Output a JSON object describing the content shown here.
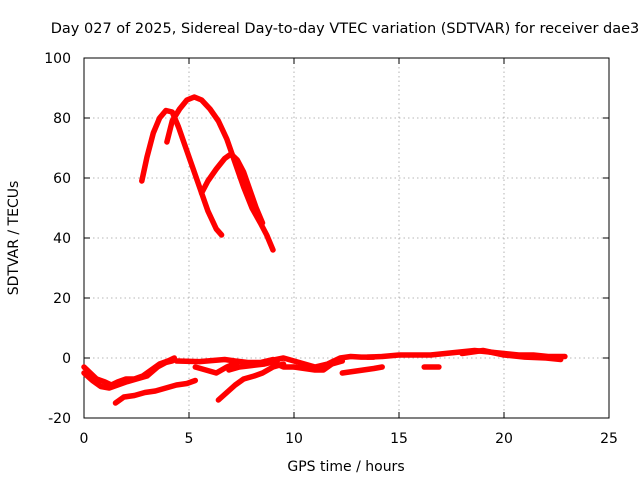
{
  "chart_data": {
    "type": "line",
    "title": "Day 027 of 2025, Sidereal Day-to-day VTEC variation (SDTVAR) for receiver dae3",
    "xlabel": "GPS time / hours",
    "ylabel": "SDTVAR / TECUs",
    "xlim": [
      0,
      25
    ],
    "ylim": [
      -20,
      100
    ],
    "xticks": [
      0,
      5,
      10,
      15,
      20,
      25
    ],
    "yticks": [
      -20,
      0,
      20,
      40,
      60,
      80,
      100
    ],
    "grid": true,
    "legend": "none",
    "color": "#ff0000",
    "series": [
      {
        "name": "arc-1",
        "points": [
          [
            2.75,
            59
          ],
          [
            3.0,
            67
          ],
          [
            3.3,
            75
          ],
          [
            3.6,
            80
          ],
          [
            3.9,
            82.5
          ],
          [
            4.2,
            82
          ],
          [
            4.5,
            77
          ],
          [
            4.8,
            71
          ],
          [
            5.1,
            65
          ],
          [
            5.5,
            57
          ],
          [
            5.9,
            49
          ],
          [
            6.3,
            43
          ],
          [
            6.55,
            41
          ]
        ]
      },
      {
        "name": "arc-2",
        "points": [
          [
            3.95,
            72
          ],
          [
            4.2,
            79
          ],
          [
            4.55,
            83
          ],
          [
            4.9,
            86
          ],
          [
            5.25,
            87
          ],
          [
            5.6,
            86
          ],
          [
            6.0,
            83
          ],
          [
            6.4,
            79
          ],
          [
            6.8,
            73
          ],
          [
            7.2,
            65
          ],
          [
            7.6,
            57
          ],
          [
            8.0,
            50
          ],
          [
            8.4,
            45
          ],
          [
            8.7,
            41
          ],
          [
            9.0,
            36
          ]
        ]
      },
      {
        "name": "arc-3",
        "points": [
          [
            5.6,
            55
          ],
          [
            5.9,
            59
          ],
          [
            6.3,
            63
          ],
          [
            6.7,
            66.5
          ],
          [
            7.0,
            68
          ],
          [
            7.3,
            66
          ],
          [
            7.6,
            62
          ],
          [
            7.9,
            56
          ],
          [
            8.2,
            50
          ],
          [
            8.5,
            45
          ]
        ]
      },
      {
        "name": "low-1",
        "points": [
          [
            0.0,
            -3
          ],
          [
            0.3,
            -5
          ],
          [
            0.6,
            -7
          ],
          [
            1.0,
            -8
          ],
          [
            1.3,
            -9
          ],
          [
            1.6,
            -8
          ],
          [
            2.0,
            -7
          ],
          [
            2.4,
            -7
          ],
          [
            2.8,
            -6
          ],
          [
            3.2,
            -4
          ],
          [
            3.6,
            -2
          ],
          [
            4.0,
            -1
          ],
          [
            4.3,
            0
          ]
        ]
      },
      {
        "name": "low-2",
        "points": [
          [
            0.0,
            -5
          ],
          [
            0.4,
            -7.5
          ],
          [
            0.8,
            -9.5
          ],
          [
            1.2,
            -10
          ],
          [
            1.6,
            -9
          ],
          [
            2.0,
            -8
          ],
          [
            2.5,
            -7
          ],
          [
            3.0,
            -6
          ],
          [
            3.5,
            -3
          ],
          [
            3.9,
            -1.5
          ],
          [
            4.2,
            -1
          ]
        ]
      },
      {
        "name": "low-3",
        "points": [
          [
            1.5,
            -15
          ],
          [
            1.9,
            -13
          ],
          [
            2.4,
            -12.5
          ],
          [
            2.9,
            -11.5
          ],
          [
            3.4,
            -11
          ],
          [
            3.9,
            -10
          ],
          [
            4.4,
            -9
          ],
          [
            4.9,
            -8.5
          ],
          [
            5.3,
            -7.5
          ]
        ]
      },
      {
        "name": "low-4",
        "points": [
          [
            5.3,
            -3
          ],
          [
            5.8,
            -4
          ],
          [
            6.3,
            -5
          ],
          [
            6.8,
            -3
          ],
          [
            7.3,
            -1.5
          ]
        ]
      },
      {
        "name": "low-5",
        "points": [
          [
            6.4,
            -14
          ],
          [
            6.8,
            -11.5
          ],
          [
            7.2,
            -9
          ],
          [
            7.6,
            -7
          ],
          [
            8.1,
            -6
          ],
          [
            8.5,
            -5
          ],
          [
            9.0,
            -3
          ],
          [
            9.5,
            -2
          ]
        ]
      },
      {
        "name": "low-6",
        "points": [
          [
            4.4,
            -1
          ],
          [
            5.5,
            -1.2
          ],
          [
            6.7,
            -0.5
          ],
          [
            7.2,
            -1
          ],
          [
            7.8,
            -1.5
          ],
          [
            8.4,
            -1.5
          ],
          [
            9.0,
            -0.5
          ]
        ]
      },
      {
        "name": "low-7",
        "points": [
          [
            6.9,
            -4
          ],
          [
            7.4,
            -3
          ],
          [
            8.0,
            -2.5
          ],
          [
            8.6,
            -2
          ],
          [
            9.2,
            -1
          ]
        ]
      },
      {
        "name": "low-8",
        "points": [
          [
            8.2,
            -2
          ],
          [
            8.8,
            -1
          ],
          [
            9.5,
            0
          ],
          [
            10.0,
            -1
          ],
          [
            10.5,
            -2
          ],
          [
            11.0,
            -3
          ],
          [
            11.6,
            -2
          ],
          [
            12.2,
            0
          ],
          [
            12.7,
            0.5
          ],
          [
            13.2,
            0.3
          ],
          [
            13.8,
            0.3
          ]
        ]
      },
      {
        "name": "low-9",
        "points": [
          [
            9.0,
            -1.5
          ],
          [
            9.5,
            -3
          ],
          [
            10.0,
            -3
          ],
          [
            10.5,
            -3.5
          ],
          [
            11.0,
            -4
          ],
          [
            11.4,
            -4
          ],
          [
            11.8,
            -2
          ],
          [
            12.3,
            -1
          ]
        ]
      },
      {
        "name": "low-10",
        "points": [
          [
            12.3,
            -5
          ],
          [
            12.8,
            -4.5
          ],
          [
            13.3,
            -4
          ],
          [
            13.8,
            -3.5
          ],
          [
            14.2,
            -3
          ]
        ]
      },
      {
        "name": "low-11",
        "points": [
          [
            13.5,
            0.3
          ],
          [
            14.2,
            0.5
          ],
          [
            15.0,
            1
          ],
          [
            15.8,
            1
          ],
          [
            16.5,
            1
          ],
          [
            17.2,
            1.5
          ],
          [
            17.9,
            2
          ],
          [
            18.6,
            2.5
          ],
          [
            19.3,
            2
          ],
          [
            20.0,
            1.5
          ],
          [
            20.7,
            1
          ],
          [
            21.4,
            1
          ],
          [
            22.1,
            0.5
          ],
          [
            22.9,
            0.5
          ]
        ]
      },
      {
        "name": "low-12",
        "points": [
          [
            16.2,
            -3
          ],
          [
            16.6,
            -3
          ],
          [
            16.9,
            -3
          ]
        ]
      },
      {
        "name": "low-13",
        "points": [
          [
            18.0,
            1.5
          ],
          [
            19.0,
            2.5
          ],
          [
            20.0,
            1
          ],
          [
            21.0,
            0.3
          ],
          [
            22.0,
            0
          ],
          [
            22.7,
            -0.5
          ]
        ]
      }
    ]
  }
}
